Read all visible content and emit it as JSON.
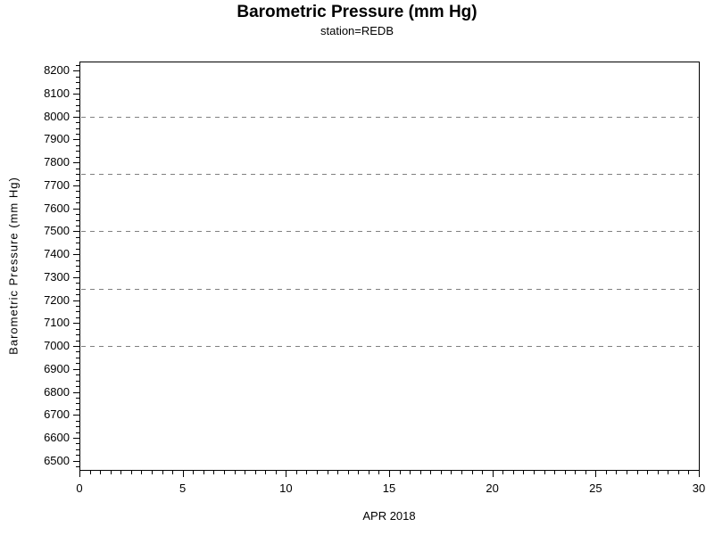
{
  "header": {
    "title": "Barometric Pressure (mm Hg)",
    "subtitle": "station=REDB"
  },
  "chart_data": {
    "type": "line",
    "title": "Barometric Pressure (mm Hg)",
    "subtitle": "station=REDB",
    "xlabel": "APR 2018",
    "ylabel": "Barometric Pressure (mm Hg)",
    "xlim": [
      0,
      30
    ],
    "ylim": [
      6460,
      8240
    ],
    "x_major_ticks": [
      0,
      5,
      10,
      15,
      20,
      25,
      30
    ],
    "x_tick_labels": [
      "0",
      "5",
      "10",
      "15",
      "20",
      "25",
      "30"
    ],
    "x_minor_step": 0.5,
    "y_major_ticks": [
      6500,
      6600,
      6700,
      6800,
      6900,
      7000,
      7100,
      7200,
      7300,
      7400,
      7500,
      7600,
      7700,
      7800,
      7900,
      8000,
      8100,
      8200
    ],
    "y_tick_labels": [
      "6500",
      "6600",
      "6700",
      "6800",
      "6900",
      "7000",
      "7100",
      "7200",
      "7300",
      "7400",
      "7500",
      "7600",
      "7700",
      "7800",
      "7900",
      "8000",
      "8100",
      "8200"
    ],
    "y_minor_step": 25,
    "y_gridlines": [
      7000,
      7250,
      7500,
      7750,
      8000
    ],
    "grid_on": true,
    "grid_style": "dashed",
    "grid_color": "#808080",
    "axis_color": "#000000",
    "text_color": "#000000",
    "background_color": "#ffffff",
    "legend": [],
    "series": []
  }
}
